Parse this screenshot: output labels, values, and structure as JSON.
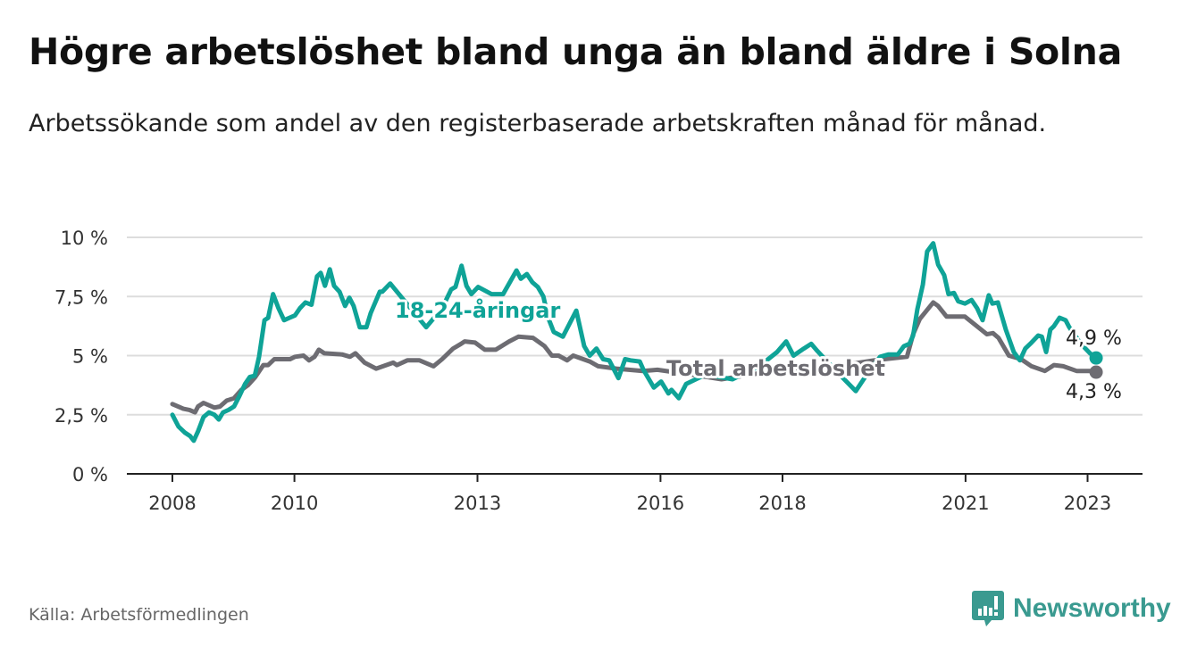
{
  "title": "Högre arbetslöshet bland unga än bland äldre i Solna",
  "subtitle": "Arbetssökande som andel av den registerbaserade arbetskraften månad för månad.",
  "source": "Källa: Arbetsförmedlingen",
  "logo": "Newsworthy",
  "colors": {
    "youth": "#0fa397",
    "total": "#6d6c72",
    "grid": "#dddddd",
    "logo": "#3a9a90"
  },
  "chart_data": {
    "type": "line",
    "title": "Högre arbetslöshet bland unga än bland äldre i Solna",
    "xlabel": "",
    "ylabel": "",
    "xlim": [
      2008,
      2023.2
    ],
    "ylim": [
      0,
      10
    ],
    "x_ticks": [
      {
        "v": 2008,
        "label": "2008"
      },
      {
        "v": 2010,
        "label": "2010"
      },
      {
        "v": 2013,
        "label": "2013"
      },
      {
        "v": 2016,
        "label": "2016"
      },
      {
        "v": 2018,
        "label": "2018"
      },
      {
        "v": 2021,
        "label": "2021"
      },
      {
        "v": 2023,
        "label": "2023"
      }
    ],
    "y_ticks": [
      {
        "v": 0,
        "label": "0 %"
      },
      {
        "v": 2.5,
        "label": "2,5 %"
      },
      {
        "v": 5,
        "label": "5 %"
      },
      {
        "v": 7.5,
        "label": "7,5 %"
      },
      {
        "v": 10,
        "label": "10 %"
      }
    ],
    "grid": true,
    "series": [
      {
        "name": "18-24-åringar",
        "end_label": "4,9 %",
        "points": [
          [
            2008.0,
            2.5
          ],
          [
            2008.1,
            2.0
          ],
          [
            2008.2,
            1.75
          ],
          [
            2008.29,
            1.6
          ],
          [
            2008.35,
            1.4
          ],
          [
            2008.42,
            1.8
          ],
          [
            2008.51,
            2.4
          ],
          [
            2008.6,
            2.6
          ],
          [
            2008.69,
            2.5
          ],
          [
            2008.76,
            2.3
          ],
          [
            2008.83,
            2.6
          ],
          [
            2008.92,
            2.7
          ],
          [
            2009.01,
            2.85
          ],
          [
            2009.1,
            3.3
          ],
          [
            2009.19,
            3.8
          ],
          [
            2009.27,
            4.1
          ],
          [
            2009.35,
            4.15
          ],
          [
            2009.42,
            4.95
          ],
          [
            2009.51,
            6.5
          ],
          [
            2009.57,
            6.6
          ],
          [
            2009.65,
            7.6
          ],
          [
            2009.74,
            7.0
          ],
          [
            2009.83,
            6.5
          ],
          [
            2009.92,
            6.6
          ],
          [
            2010.01,
            6.7
          ],
          [
            2010.09,
            7.0
          ],
          [
            2010.18,
            7.25
          ],
          [
            2010.28,
            7.15
          ],
          [
            2010.37,
            8.35
          ],
          [
            2010.43,
            8.5
          ],
          [
            2010.5,
            7.95
          ],
          [
            2010.58,
            8.65
          ],
          [
            2010.65,
            7.95
          ],
          [
            2010.74,
            7.7
          ],
          [
            2010.83,
            7.1
          ],
          [
            2010.9,
            7.45
          ],
          [
            2010.97,
            7.1
          ],
          [
            2011.07,
            6.2
          ],
          [
            2011.18,
            6.2
          ],
          [
            2011.25,
            6.8
          ],
          [
            2011.4,
            7.7
          ],
          [
            2011.44,
            7.7
          ],
          [
            2011.57,
            8.05
          ],
          [
            2011.84,
            7.2
          ],
          [
            2012.16,
            6.2
          ],
          [
            2012.42,
            7.0
          ],
          [
            2012.57,
            7.8
          ],
          [
            2012.64,
            7.9
          ],
          [
            2012.74,
            8.8
          ],
          [
            2012.82,
            7.95
          ],
          [
            2012.9,
            7.6
          ],
          [
            2013.01,
            7.9
          ],
          [
            2013.23,
            7.6
          ],
          [
            2013.42,
            7.6
          ],
          [
            2013.64,
            8.6
          ],
          [
            2013.71,
            8.25
          ],
          [
            2013.81,
            8.45
          ],
          [
            2013.9,
            8.1
          ],
          [
            2013.99,
            7.9
          ],
          [
            2014.08,
            7.5
          ],
          [
            2014.16,
            6.6
          ],
          [
            2014.25,
            6.0
          ],
          [
            2014.4,
            5.8
          ],
          [
            2014.62,
            6.9
          ],
          [
            2014.75,
            5.4
          ],
          [
            2014.84,
            5.0
          ],
          [
            2014.95,
            5.3
          ],
          [
            2015.06,
            4.85
          ],
          [
            2015.16,
            4.8
          ],
          [
            2015.31,
            4.05
          ],
          [
            2015.42,
            4.85
          ],
          [
            2015.51,
            4.8
          ],
          [
            2015.66,
            4.75
          ],
          [
            2015.72,
            4.4
          ],
          [
            2015.89,
            3.65
          ],
          [
            2016.01,
            3.9
          ],
          [
            2016.13,
            3.4
          ],
          [
            2016.18,
            3.55
          ],
          [
            2016.3,
            3.2
          ],
          [
            2016.42,
            3.8
          ],
          [
            2016.74,
            4.2
          ],
          [
            2017.18,
            4.0
          ],
          [
            2017.62,
            4.55
          ],
          [
            2017.91,
            5.15
          ],
          [
            2018.06,
            5.6
          ],
          [
            2018.18,
            5.0
          ],
          [
            2018.35,
            5.3
          ],
          [
            2018.47,
            5.5
          ],
          [
            2018.57,
            5.2
          ],
          [
            2018.86,
            4.4
          ],
          [
            2019.2,
            3.5
          ],
          [
            2019.38,
            4.2
          ],
          [
            2019.6,
            4.95
          ],
          [
            2019.74,
            5.05
          ],
          [
            2019.89,
            5.05
          ],
          [
            2019.99,
            5.4
          ],
          [
            2020.08,
            5.5
          ],
          [
            2020.14,
            5.85
          ],
          [
            2020.21,
            6.95
          ],
          [
            2020.3,
            8.0
          ],
          [
            2020.37,
            9.4
          ],
          [
            2020.47,
            9.75
          ],
          [
            2020.55,
            8.85
          ],
          [
            2020.65,
            8.4
          ],
          [
            2020.72,
            7.6
          ],
          [
            2020.81,
            7.65
          ],
          [
            2020.88,
            7.3
          ],
          [
            2020.99,
            7.2
          ],
          [
            2021.1,
            7.35
          ],
          [
            2021.19,
            7.0
          ],
          [
            2021.28,
            6.5
          ],
          [
            2021.38,
            7.55
          ],
          [
            2021.44,
            7.2
          ],
          [
            2021.53,
            7.25
          ],
          [
            2021.66,
            6.1
          ],
          [
            2021.79,
            5.15
          ],
          [
            2021.89,
            4.8
          ],
          [
            2021.98,
            5.3
          ],
          [
            2022.08,
            5.55
          ],
          [
            2022.19,
            5.85
          ],
          [
            2022.25,
            5.8
          ],
          [
            2022.32,
            5.15
          ],
          [
            2022.39,
            6.1
          ],
          [
            2022.45,
            6.25
          ],
          [
            2022.54,
            6.6
          ],
          [
            2022.64,
            6.5
          ],
          [
            2022.7,
            6.2
          ],
          [
            2022.89,
            5.5
          ],
          [
            2023.04,
            5.1
          ],
          [
            2023.14,
            4.9
          ]
        ]
      },
      {
        "name": "Total arbetslöshet",
        "end_label": "4,3 %",
        "points": [
          [
            2008.0,
            2.95
          ],
          [
            2008.18,
            2.75
          ],
          [
            2008.28,
            2.7
          ],
          [
            2008.37,
            2.6
          ],
          [
            2008.42,
            2.85
          ],
          [
            2008.51,
            3.0
          ],
          [
            2008.69,
            2.8
          ],
          [
            2008.78,
            2.85
          ],
          [
            2008.89,
            3.1
          ],
          [
            2009.01,
            3.2
          ],
          [
            2009.13,
            3.55
          ],
          [
            2009.24,
            3.75
          ],
          [
            2009.36,
            4.1
          ],
          [
            2009.49,
            4.6
          ],
          [
            2009.57,
            4.6
          ],
          [
            2009.67,
            4.85
          ],
          [
            2009.83,
            4.85
          ],
          [
            2009.93,
            4.85
          ],
          [
            2010.01,
            4.95
          ],
          [
            2010.15,
            5.0
          ],
          [
            2010.24,
            4.8
          ],
          [
            2010.33,
            4.95
          ],
          [
            2010.4,
            5.25
          ],
          [
            2010.49,
            5.1
          ],
          [
            2010.78,
            5.05
          ],
          [
            2010.91,
            4.95
          ],
          [
            2011.0,
            5.1
          ],
          [
            2011.15,
            4.7
          ],
          [
            2011.34,
            4.45
          ],
          [
            2011.62,
            4.7
          ],
          [
            2011.68,
            4.6
          ],
          [
            2011.85,
            4.8
          ],
          [
            2012.05,
            4.8
          ],
          [
            2012.28,
            4.55
          ],
          [
            2012.42,
            4.85
          ],
          [
            2012.6,
            5.3
          ],
          [
            2012.73,
            5.5
          ],
          [
            2012.79,
            5.6
          ],
          [
            2012.96,
            5.55
          ],
          [
            2013.12,
            5.25
          ],
          [
            2013.3,
            5.25
          ],
          [
            2013.52,
            5.6
          ],
          [
            2013.67,
            5.8
          ],
          [
            2013.91,
            5.75
          ],
          [
            2014.1,
            5.4
          ],
          [
            2014.22,
            5.0
          ],
          [
            2014.33,
            5.0
          ],
          [
            2014.47,
            4.8
          ],
          [
            2014.57,
            5.0
          ],
          [
            2014.84,
            4.75
          ],
          [
            2014.98,
            4.55
          ],
          [
            2015.28,
            4.45
          ],
          [
            2015.71,
            4.35
          ],
          [
            2015.95,
            4.4
          ],
          [
            2016.5,
            4.2
          ],
          [
            2017.0,
            4.0
          ],
          [
            2017.5,
            4.2
          ],
          [
            2018.0,
            4.45
          ],
          [
            2018.5,
            4.4
          ],
          [
            2019.0,
            4.6
          ],
          [
            2019.5,
            4.8
          ],
          [
            2020.04,
            4.95
          ],
          [
            2020.14,
            5.9
          ],
          [
            2020.25,
            6.55
          ],
          [
            2020.47,
            7.25
          ],
          [
            2020.55,
            7.1
          ],
          [
            2020.69,
            6.65
          ],
          [
            2020.99,
            6.65
          ],
          [
            2021.28,
            6.05
          ],
          [
            2021.35,
            5.9
          ],
          [
            2021.45,
            5.95
          ],
          [
            2021.54,
            5.75
          ],
          [
            2021.71,
            5.0
          ],
          [
            2021.91,
            4.85
          ],
          [
            2022.08,
            4.55
          ],
          [
            2022.3,
            4.35
          ],
          [
            2022.45,
            4.6
          ],
          [
            2022.6,
            4.55
          ],
          [
            2022.82,
            4.35
          ],
          [
            2023.04,
            4.35
          ],
          [
            2023.14,
            4.3
          ]
        ]
      }
    ]
  }
}
